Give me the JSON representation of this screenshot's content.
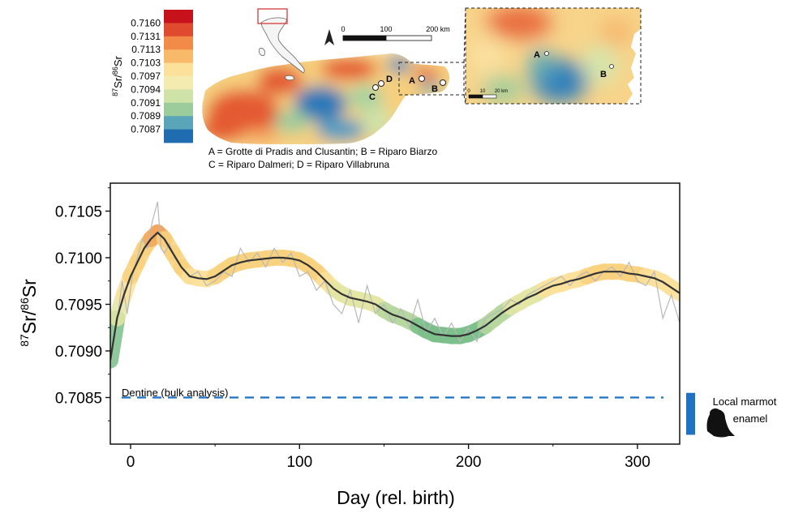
{
  "legend": {
    "ylabel_iso_top": "87",
    "ylabel_el1": "Sr/",
    "ylabel_iso_bottom": "86",
    "ylabel_el2": "Sr",
    "bins": [
      {
        "label": "0.7160",
        "color": "#c8121b"
      },
      {
        "label": "0.7131",
        "color": "#e04a2e"
      },
      {
        "label": "0.7113",
        "color": "#f28a48"
      },
      {
        "label": "0.7103",
        "color": "#f8b96a"
      },
      {
        "label": "0.7097",
        "color": "#fbe19a"
      },
      {
        "label": "0.7094",
        "color": "#f3ebb0"
      },
      {
        "label": "0.7091",
        "color": "#cfe2a8"
      },
      {
        "label": "0.7089",
        "color": "#9ccc9c"
      },
      {
        "label": "0.7087",
        "color": "#5aa6b8"
      },
      {
        "label": "",
        "color": "#1f6db0"
      }
    ]
  },
  "map": {
    "scale_labels": [
      "0",
      "100",
      "200 km"
    ],
    "inset_scale_labels": [
      "0",
      "10",
      "20 km"
    ],
    "sites": [
      {
        "letter": "A",
        "name": "Grotte di Pradis and Clusantin"
      },
      {
        "letter": "B",
        "name": "Riparo Biarzo"
      },
      {
        "letter": "C",
        "name": "Riparo Dalmeri"
      },
      {
        "letter": "D",
        "name": "Riparo Villabruna"
      }
    ],
    "caption_line1": "A = Grotte di Pradis and Clusantin; B = Riparo Biarzo",
    "caption_line2": "C = Riparo Dalmeri; D = Riparo Villabruna"
  },
  "chart_data": {
    "type": "line",
    "xlabel": "Day (rel. birth)",
    "ylabel_iso_top": "87",
    "ylabel_el1": "Sr/",
    "ylabel_iso_bottom": "86",
    "ylabel_el2": "Sr",
    "xlim": [
      -12,
      325
    ],
    "ylim": [
      0.708,
      0.7108
    ],
    "xticks": [
      0,
      100,
      200,
      300
    ],
    "xtick_labels": [
      "0",
      "100",
      "200",
      "300"
    ],
    "yticks": [
      0.7085,
      0.709,
      0.7095,
      0.71,
      0.7105
    ],
    "ytick_labels": [
      "0.7085",
      "0.7090",
      "0.7095",
      "0.7100",
      "0.7105"
    ],
    "grid": false,
    "series": [
      {
        "role": "raw",
        "color": "#b8b8b8",
        "x": [
          -12,
          -8,
          -5,
          -2,
          1,
          4,
          7,
          10,
          13,
          16,
          18,
          20,
          23,
          26,
          30,
          35,
          40,
          45,
          50,
          55,
          60,
          65,
          70,
          75,
          80,
          85,
          90,
          95,
          100,
          105,
          110,
          115,
          120,
          125,
          130,
          135,
          140,
          145,
          150,
          155,
          160,
          165,
          170,
          175,
          180,
          185,
          190,
          195,
          200,
          205,
          210,
          215,
          220,
          225,
          230,
          235,
          240,
          245,
          250,
          255,
          260,
          265,
          270,
          275,
          280,
          285,
          290,
          295,
          300,
          305,
          310,
          315,
          320,
          325
        ],
        "y": [
          0.7089,
          0.7093,
          0.70975,
          0.7094,
          0.7098,
          0.71,
          0.7102,
          0.7101,
          0.7104,
          0.7106,
          0.7101,
          0.71005,
          0.71015,
          0.71,
          0.7099,
          0.7098,
          0.70985,
          0.7097,
          0.70975,
          0.70985,
          0.7098,
          0.7101,
          0.70995,
          0.71005,
          0.7099,
          0.7101,
          0.70995,
          0.71005,
          0.7098,
          0.70985,
          0.70965,
          0.70975,
          0.7095,
          0.7094,
          0.70965,
          0.7093,
          0.7097,
          0.7094,
          0.7095,
          0.7093,
          0.70945,
          0.70925,
          0.70955,
          0.7092,
          0.70935,
          0.70915,
          0.7093,
          0.7091,
          0.70925,
          0.7091,
          0.70935,
          0.7094,
          0.70945,
          0.70955,
          0.7095,
          0.7096,
          0.70965,
          0.7097,
          0.70975,
          0.7098,
          0.7097,
          0.7098,
          0.70985,
          0.70975,
          0.70985,
          0.7099,
          0.7098,
          0.70995,
          0.70975,
          0.7097,
          0.70985,
          0.70935,
          0.7096,
          0.7093
        ]
      },
      {
        "role": "smoothed",
        "color": "#333333",
        "x": [
          -12,
          -8,
          -4,
          0,
          4,
          8,
          12,
          16,
          20,
          25,
          30,
          35,
          40,
          45,
          50,
          55,
          60,
          65,
          70,
          75,
          80,
          85,
          90,
          95,
          100,
          105,
          110,
          115,
          120,
          125,
          130,
          135,
          140,
          145,
          150,
          155,
          160,
          165,
          170,
          175,
          180,
          185,
          190,
          195,
          200,
          205,
          210,
          215,
          220,
          225,
          230,
          235,
          240,
          245,
          250,
          255,
          260,
          265,
          270,
          275,
          280,
          285,
          290,
          295,
          300,
          305,
          310,
          315,
          320,
          325
        ],
        "y": [
          0.7089,
          0.70935,
          0.7096,
          0.7098,
          0.70995,
          0.7101,
          0.7102,
          0.71027,
          0.7102,
          0.71005,
          0.7099,
          0.7098,
          0.70978,
          0.70977,
          0.7098,
          0.70986,
          0.70992,
          0.70995,
          0.70997,
          0.70998,
          0.70999,
          0.71,
          0.71,
          0.70999,
          0.70997,
          0.70992,
          0.70985,
          0.70976,
          0.70967,
          0.70961,
          0.70957,
          0.70955,
          0.70953,
          0.7095,
          0.70944,
          0.70939,
          0.70936,
          0.70932,
          0.70927,
          0.70922,
          0.70918,
          0.70917,
          0.70916,
          0.70916,
          0.70918,
          0.70922,
          0.70927,
          0.70934,
          0.70941,
          0.70947,
          0.70952,
          0.70957,
          0.70961,
          0.70966,
          0.7097,
          0.70972,
          0.70975,
          0.70977,
          0.7098,
          0.70983,
          0.70985,
          0.70985,
          0.70985,
          0.70983,
          0.70982,
          0.7098,
          0.70978,
          0.70974,
          0.70968,
          0.70962
        ]
      }
    ],
    "reference_line": {
      "value": 0.7085,
      "label": "Dentine (bulk analysis)",
      "color": "#1f72c1"
    },
    "side_marker": {
      "label_line1": "Local marmot",
      "label_line2": "enamel",
      "low": 0.7081,
      "high": 0.70855,
      "color": "#1f72c1"
    }
  }
}
